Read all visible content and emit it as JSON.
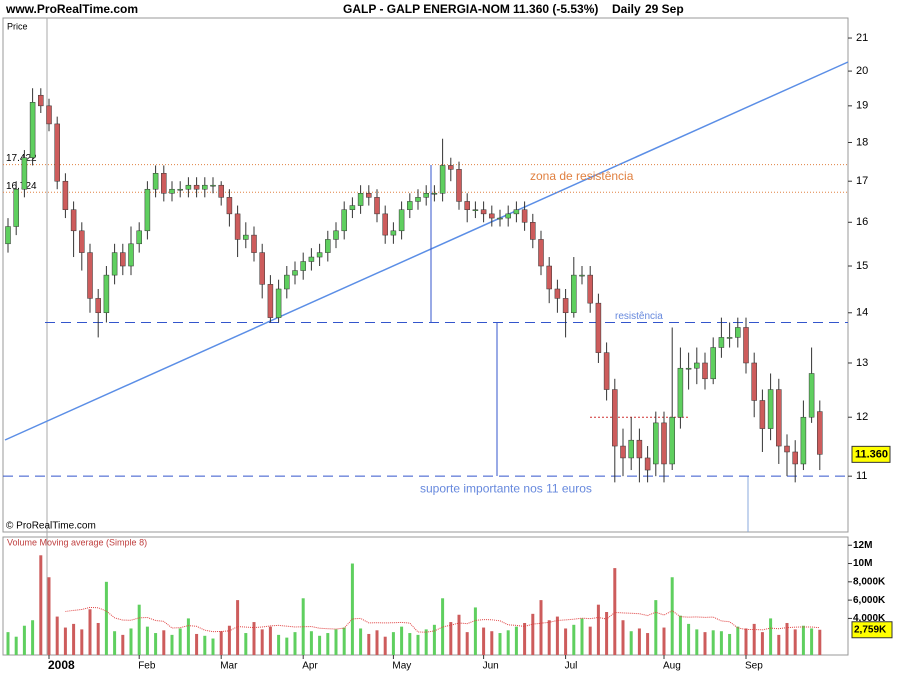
{
  "chart_data": {
    "type": "candlestick",
    "site": "www.ProRealTime.com",
    "title": "GALP - GALP ENERGIA-NOM",
    "change": "11.360 (-5.53%)",
    "period": "Daily",
    "date": "29 Sep",
    "y_label": "Price",
    "copyright": "© ProRealTime.com",
    "log_scale": true,
    "up_color": "#5fcf5f",
    "down_color": "#cd5c5c",
    "ylim": [
      10.13,
      21.63
    ],
    "yticks": [
      11,
      12,
      13,
      14,
      15,
      16,
      17,
      18,
      19,
      20,
      21
    ],
    "categories": [
      null,
      null,
      null,
      null,
      null,
      "2008",
      null,
      null,
      null,
      null,
      null,
      null,
      null,
      null,
      null,
      null,
      "Feb",
      null,
      null,
      null,
      null,
      null,
      null,
      null,
      null,
      null,
      "Mar",
      null,
      null,
      null,
      null,
      null,
      null,
      null,
      null,
      null,
      "Apr",
      null,
      null,
      null,
      null,
      null,
      null,
      null,
      null,
      null,
      null,
      "May",
      null,
      null,
      null,
      null,
      null,
      null,
      null,
      null,
      null,
      null,
      "Jun",
      null,
      null,
      null,
      null,
      null,
      null,
      null,
      null,
      null,
      "Jul",
      null,
      null,
      null,
      null,
      null,
      null,
      null,
      null,
      null,
      null,
      null,
      "Aug",
      null,
      null,
      null,
      null,
      null,
      null,
      null,
      null,
      null,
      "Sep",
      null,
      null,
      null,
      null,
      null,
      null,
      null,
      null,
      null
    ],
    "open": [
      15.5,
      15.9,
      16.8,
      17.6,
      19.3,
      19.0,
      18.5,
      17.0,
      16.3,
      15.8,
      15.3,
      14.3,
      14.0,
      14.8,
      15.3,
      15.0,
      15.5,
      15.8,
      16.8,
      17.2,
      16.7,
      16.8,
      16.8,
      16.9,
      16.8,
      16.9,
      16.9,
      16.6,
      16.2,
      15.6,
      15.7,
      15.3,
      14.6,
      13.9,
      14.5,
      14.8,
      14.9,
      15.1,
      15.2,
      15.3,
      15.6,
      15.8,
      16.3,
      16.4,
      16.7,
      16.6,
      16.2,
      15.7,
      15.8,
      16.3,
      16.5,
      16.6,
      16.7,
      16.7,
      17.4,
      17.3,
      16.5,
      16.3,
      16.3,
      16.2,
      16.1,
      16.1,
      16.2,
      16.3,
      16.0,
      15.6,
      15.0,
      14.5,
      14.3,
      14.0,
      14.8,
      14.8,
      14.2,
      13.2,
      12.5,
      11.5,
      11.3,
      11.6,
      11.3,
      11.2,
      11.9,
      11.2,
      12.0,
      12.9,
      12.9,
      13.0,
      12.7,
      13.3,
      13.5,
      13.5,
      13.7,
      13.0,
      12.3,
      11.8,
      12.5,
      11.5,
      11.4,
      11.2,
      12.0,
      12.1
    ],
    "high": [
      16.1,
      17.0,
      17.8,
      19.5,
      19.5,
      19.2,
      18.7,
      17.2,
      16.5,
      16.0,
      15.5,
      14.5,
      15.0,
      15.5,
      15.5,
      15.9,
      16.0,
      17.0,
      17.4,
      17.4,
      17.0,
      17.0,
      17.1,
      17.1,
      17.1,
      17.1,
      17.0,
      16.8,
      16.4,
      16.0,
      15.9,
      15.5,
      14.8,
      14.7,
      15.0,
      15.1,
      15.3,
      15.4,
      15.5,
      15.8,
      16.0,
      16.5,
      16.6,
      16.9,
      16.9,
      16.8,
      16.4,
      16.0,
      16.5,
      16.7,
      16.8,
      16.9,
      16.9,
      18.1,
      17.6,
      17.5,
      16.7,
      16.5,
      16.5,
      16.4,
      16.3,
      16.4,
      16.5,
      16.5,
      16.2,
      15.8,
      15.2,
      14.7,
      14.5,
      15.2,
      15.0,
      15.0,
      14.4,
      13.4,
      12.7,
      11.8,
      12.0,
      11.8,
      11.5,
      12.1,
      12.1,
      13.7,
      13.3,
      13.2,
      13.3,
      13.2,
      13.5,
      13.9,
      13.8,
      13.9,
      13.9,
      13.2,
      12.5,
      12.8,
      12.7,
      11.7,
      11.6,
      12.3,
      13.3,
      12.3
    ],
    "low": [
      15.3,
      15.7,
      16.6,
      17.4,
      18.8,
      18.3,
      16.8,
      16.1,
      15.2,
      14.9,
      14.0,
      13.5,
      13.8,
      14.6,
      14.8,
      14.8,
      15.3,
      15.6,
      16.6,
      16.5,
      16.5,
      16.6,
      16.6,
      16.6,
      16.6,
      16.7,
      16.4,
      15.9,
      15.2,
      15.4,
      15.1,
      14.3,
      13.8,
      13.8,
      14.3,
      14.6,
      14.7,
      14.9,
      15.0,
      15.1,
      15.4,
      15.6,
      16.1,
      16.2,
      16.4,
      16.0,
      15.5,
      15.5,
      15.6,
      16.1,
      16.3,
      16.4,
      16.5,
      16.5,
      17.0,
      16.3,
      16.0,
      16.1,
      16.0,
      15.9,
      15.9,
      15.9,
      16.0,
      15.8,
      15.4,
      14.8,
      14.2,
      14.0,
      13.5,
      13.9,
      14.6,
      14.0,
      13.0,
      12.3,
      10.9,
      11.0,
      11.1,
      10.9,
      10.9,
      11.0,
      10.9,
      11.1,
      11.8,
      12.5,
      12.6,
      12.5,
      12.6,
      13.1,
      13.3,
      13.3,
      12.8,
      12.0,
      11.4,
      11.6,
      11.2,
      11.0,
      10.9,
      11.1,
      11.9,
      11.1
    ],
    "close": [
      15.9,
      16.8,
      17.6,
      19.1,
      19.0,
      18.5,
      17.0,
      16.3,
      15.8,
      15.3,
      14.3,
      14.0,
      14.8,
      15.3,
      15.0,
      15.5,
      15.8,
      16.8,
      17.2,
      16.7,
      16.8,
      16.8,
      16.9,
      16.8,
      16.9,
      16.9,
      16.6,
      16.2,
      15.6,
      15.7,
      15.3,
      14.6,
      13.9,
      14.5,
      14.8,
      14.9,
      15.1,
      15.2,
      15.3,
      15.6,
      15.8,
      16.3,
      16.4,
      16.7,
      16.6,
      16.2,
      15.7,
      15.8,
      16.3,
      16.5,
      16.6,
      16.7,
      16.7,
      17.4,
      17.3,
      16.5,
      16.3,
      16.3,
      16.2,
      16.1,
      16.1,
      16.2,
      16.3,
      16.0,
      15.6,
      15.0,
      14.5,
      14.3,
      14.0,
      14.8,
      14.8,
      14.2,
      13.2,
      12.5,
      11.5,
      11.3,
      11.6,
      11.3,
      11.1,
      11.9,
      11.2,
      12.0,
      12.9,
      12.9,
      13.0,
      12.7,
      13.3,
      13.5,
      13.5,
      13.7,
      13.0,
      12.3,
      11.8,
      12.5,
      11.5,
      11.4,
      11.2,
      12.0,
      12.8,
      11.36
    ],
    "last_price": {
      "value": 11.36,
      "label": "11.360"
    },
    "levels": [
      {
        "value": 17.422,
        "label": "17.422"
      },
      {
        "value": 16.724,
        "label": "16.724"
      }
    ],
    "zone_label": "zona de resistência",
    "resistance": {
      "value": 13.8,
      "label": "resistência"
    },
    "support": {
      "value": 11,
      "label": "suporte importante nos 11 euros"
    },
    "minor_level": 12,
    "volume": {
      "title": "Volume Moving average (Simple 8)",
      "ma_color": "#e04040",
      "ylim": [
        0,
        12900
      ],
      "yticks": [
        {
          "value": 12000,
          "label": "12M"
        },
        {
          "value": 10000,
          "label": "10M"
        },
        {
          "value": 8000,
          "label": "8,000K"
        },
        {
          "value": 6000,
          "label": "6,000K"
        },
        {
          "value": 4000,
          "label": "4,000K"
        }
      ],
      "last": {
        "value": 2759,
        "label": "2,759K"
      },
      "values": [
        2500,
        2000,
        3200,
        3800,
        10900,
        8500,
        4200,
        3000,
        3400,
        2800,
        5000,
        3500,
        8000,
        2600,
        2200,
        2900,
        5500,
        3100,
        2400,
        2700,
        2200,
        2900,
        4000,
        2300,
        2100,
        1800,
        2600,
        3200,
        6000,
        2400,
        3600,
        2800,
        3100,
        2200,
        1900,
        2500,
        6200,
        2600,
        2100,
        2400,
        2800,
        3000,
        10000,
        2900,
        2300,
        2700,
        2000,
        2500,
        3100,
        2400,
        2200,
        2800,
        3300,
        6200,
        3600,
        4400,
        2500,
        5200,
        3000,
        2600,
        2400,
        2700,
        3100,
        3500,
        4500,
        6000,
        3800,
        4200,
        2900,
        3300,
        4000,
        3100,
        5500,
        4700,
        9500,
        3800,
        2600,
        2900,
        2400,
        6000,
        3000,
        8500,
        4300,
        3400,
        2800,
        2500,
        2700,
        2600,
        2300,
        3100,
        2900,
        3400,
        2500,
        4000,
        2200,
        3500,
        2800,
        3200,
        2900,
        2759
      ]
    }
  }
}
